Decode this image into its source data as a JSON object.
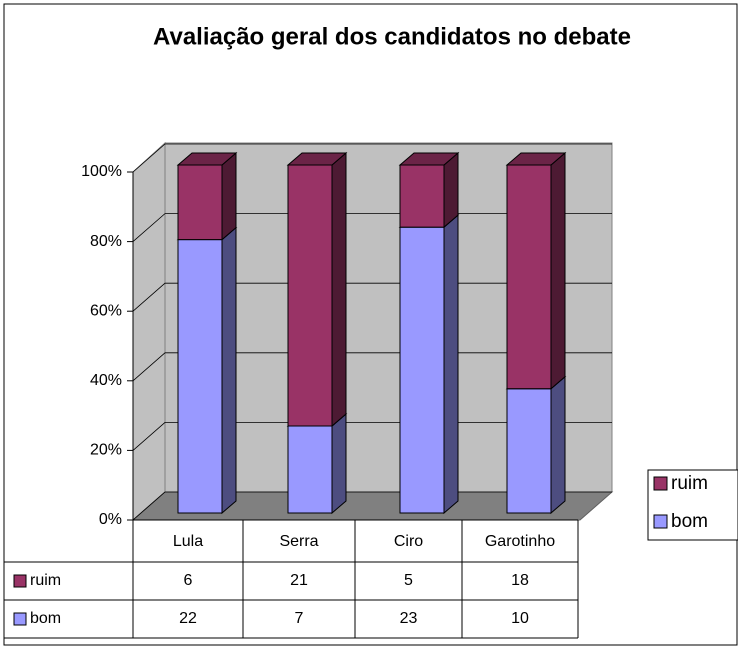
{
  "chart_data": {
    "type": "bar",
    "stack": "percent",
    "title": "Avaliação geral dos candidatos no debate",
    "categories": [
      "Lula",
      "Serra",
      "Ciro",
      "Garotinho"
    ],
    "series": [
      {
        "name": "ruim",
        "color": "#993366",
        "values": [
          6,
          21,
          5,
          18
        ]
      },
      {
        "name": "bom",
        "color": "#9999ff",
        "values": [
          22,
          7,
          23,
          10
        ]
      }
    ],
    "ylim": [
      0,
      100
    ],
    "yticks": [
      {
        "value": 0,
        "label": "0%"
      },
      {
        "value": 20,
        "label": "20%"
      },
      {
        "value": 40,
        "label": "40%"
      },
      {
        "value": 60,
        "label": "60%"
      },
      {
        "value": 80,
        "label": "80%"
      },
      {
        "value": 100,
        "label": "100%"
      }
    ],
    "grid": true,
    "legend": "right"
  }
}
